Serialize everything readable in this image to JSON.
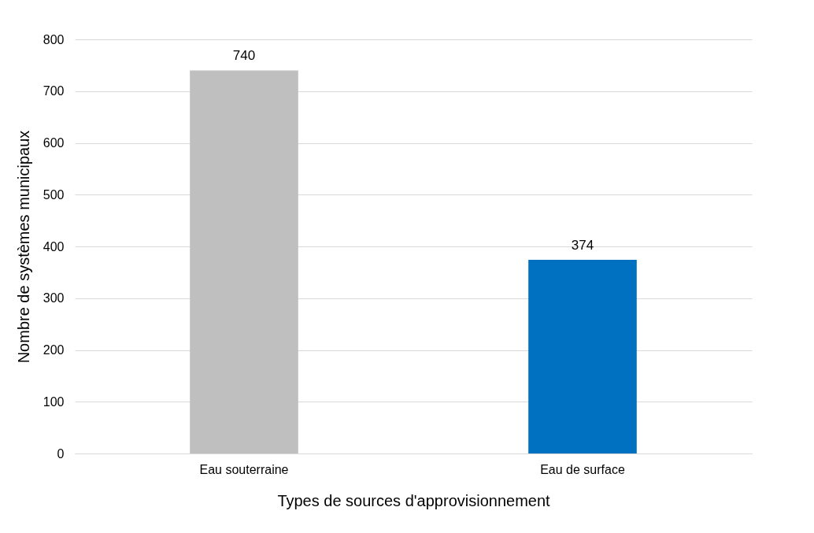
{
  "chart_data": {
    "type": "bar",
    "xlabel": "Types de sources d'approvisionnement",
    "ylabel": "Nombre de systèmes municipaux",
    "categories": [
      "Eau souterraine",
      "Eau de surface"
    ],
    "values": [
      740,
      374
    ],
    "colors": [
      "#bfbfbf",
      "#0070c0"
    ],
    "ylim": [
      0,
      800
    ],
    "yticks": [
      0,
      100,
      200,
      300,
      400,
      500,
      600,
      700,
      800
    ],
    "grid": "y",
    "data_labels": true
  }
}
